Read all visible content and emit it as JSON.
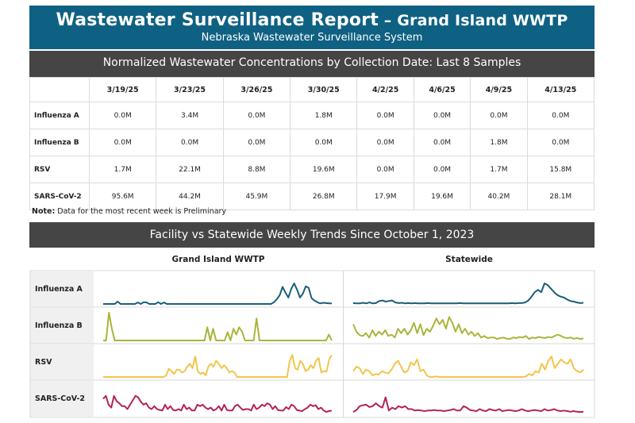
{
  "header": {
    "title": "Wastewater Surveillance Report",
    "title_suffix": " – Grand Island WWTP",
    "subtitle": "Nebraska Wastewater Surveillance System"
  },
  "section1": {
    "title": "Normalized Wastewater Concentrations by Collection Date: Last 8 Samples"
  },
  "table": {
    "dates": [
      "3/19/25",
      "3/23/25",
      "3/26/25",
      "3/30/25",
      "4/2/25",
      "4/6/25",
      "4/9/25",
      "4/13/25"
    ],
    "rows": [
      {
        "pathogen": "Influenza A",
        "values": [
          "0.0M",
          "3.4M",
          "0.0M",
          "1.8M",
          "0.0M",
          "0.0M",
          "0.0M",
          "0.0M"
        ]
      },
      {
        "pathogen": "Influenza B",
        "values": [
          "0.0M",
          "0.0M",
          "0.0M",
          "0.0M",
          "0.0M",
          "0.0M",
          "1.8M",
          "0.0M"
        ]
      },
      {
        "pathogen": "RSV",
        "values": [
          "1.7M",
          "22.1M",
          "8.8M",
          "19.6M",
          "0.0M",
          "0.0M",
          "1.7M",
          "15.8M"
        ]
      },
      {
        "pathogen": "SARS-CoV-2",
        "values": [
          "95.6M",
          "44.2M",
          "45.9M",
          "26.8M",
          "17.9M",
          "19.6M",
          "40.2M",
          "28.1M"
        ]
      }
    ]
  },
  "note": {
    "label": "Note:",
    "text": " Data for the most recent week is Preliminary"
  },
  "section2": {
    "title": "Facility vs Statewide Weekly Trends Since October 1, 2023"
  },
  "chart_data": {
    "type": "line",
    "panels": [
      "Grand Island WWTP",
      "Statewide"
    ],
    "rows": [
      "Influenza A",
      "Influenza B",
      "RSV",
      "SARS-CoV-2"
    ],
    "colors": {
      "Influenza A": "#1a5e78",
      "Influenza B": "#aab53a",
      "RSV": "#f2c54b",
      "SARS-CoV-2": "#b5215a"
    },
    "series": [
      {
        "panel": "Grand Island WWTP",
        "row": "Influenza A",
        "values": [
          0,
          0,
          0,
          0,
          0,
          8,
          0,
          0,
          0,
          0,
          0,
          0,
          5,
          0,
          6,
          5,
          0,
          0,
          0,
          6,
          0,
          5,
          0,
          0,
          0,
          0,
          0,
          0,
          0,
          0,
          0,
          0,
          0,
          0,
          0,
          0,
          0,
          0,
          0,
          0,
          0,
          0,
          0,
          0,
          0,
          0,
          0,
          0,
          0,
          0,
          0,
          0,
          0,
          0,
          0,
          0,
          0,
          0,
          0,
          6,
          16,
          30,
          58,
          38,
          22,
          52,
          70,
          48,
          22,
          35,
          60,
          55,
          20,
          12,
          6,
          2,
          4,
          3,
          2,
          2
        ]
      },
      {
        "panel": "Grand Island WWTP",
        "row": "Influenza B",
        "values": [
          0,
          0,
          95,
          40,
          0,
          0,
          0,
          0,
          0,
          0,
          0,
          0,
          0,
          0,
          0,
          0,
          0,
          0,
          0,
          0,
          0,
          0,
          0,
          0,
          0,
          0,
          0,
          0,
          0,
          0,
          0,
          0,
          0,
          0,
          0,
          0,
          45,
          0,
          40,
          0,
          0,
          0,
          0,
          28,
          0,
          40,
          20,
          45,
          30,
          0,
          0,
          0,
          0,
          75,
          0,
          0,
          0,
          0,
          0,
          0,
          0,
          0,
          0,
          0,
          0,
          0,
          0,
          0,
          0,
          0,
          0,
          0,
          0,
          0,
          0,
          0,
          0,
          0,
          20,
          0
        ]
      },
      {
        "panel": "Grand Island WWTP",
        "row": "RSV",
        "values": [
          0,
          0,
          0,
          0,
          0,
          0,
          0,
          0,
          0,
          0,
          0,
          0,
          0,
          0,
          0,
          0,
          0,
          0,
          0,
          0,
          0,
          0,
          0,
          0,
          5,
          28,
          20,
          10,
          25,
          25,
          15,
          20,
          35,
          45,
          30,
          70,
          20,
          10,
          15,
          5,
          35,
          45,
          35,
          55,
          45,
          30,
          40,
          30,
          15,
          20,
          15,
          0,
          0,
          0,
          0,
          0,
          0,
          0,
          0,
          0,
          0,
          0,
          0,
          0,
          0,
          0,
          0,
          0,
          0,
          0,
          0,
          55,
          75,
          30,
          25,
          55,
          45,
          20,
          25,
          40,
          30,
          55,
          65,
          15,
          20,
          18,
          60,
          75
        ]
      },
      {
        "panel": "Grand Island WWTP",
        "row": "SARS-CoV-2",
        "values": [
          50,
          60,
          30,
          20,
          60,
          42,
          35,
          25,
          25,
          15,
          30,
          45,
          60,
          55,
          40,
          30,
          35,
          20,
          15,
          25,
          15,
          12,
          10,
          30,
          15,
          25,
          12,
          10,
          15,
          10,
          30,
          15,
          20,
          10,
          10,
          30,
          25,
          30,
          20,
          15,
          20,
          10,
          15,
          25,
          10,
          30,
          12,
          10,
          10,
          25,
          30,
          20,
          12,
          15,
          15,
          10,
          30,
          15,
          20,
          30,
          25,
          35,
          30,
          15,
          25,
          12,
          10,
          10,
          22,
          15,
          30,
          25,
          12,
          10,
          8,
          15,
          20,
          30,
          25,
          28,
          15,
          20,
          10,
          5,
          8,
          10
        ]
      },
      {
        "panel": "Statewide",
        "row": "Influenza A",
        "values": [
          3,
          2,
          2,
          4,
          2,
          5,
          2,
          3,
          10,
          12,
          8,
          10,
          12,
          5,
          3,
          4,
          2,
          3,
          2,
          3,
          2,
          2,
          2,
          3,
          2,
          2,
          2,
          2,
          2,
          2,
          2,
          2,
          2,
          3,
          2,
          2,
          2,
          2,
          2,
          2,
          2,
          2,
          2,
          2,
          2,
          2,
          2,
          2,
          2,
          3,
          2,
          3,
          3,
          5,
          12,
          25,
          40,
          48,
          40,
          70,
          64,
          52,
          40,
          30,
          25,
          22,
          15,
          10,
          8,
          5,
          3,
          4
        ]
      },
      {
        "panel": "Statewide",
        "row": "Influenza B",
        "values": [
          55,
          30,
          18,
          15,
          25,
          10,
          35,
          15,
          30,
          20,
          35,
          15,
          20,
          10,
          40,
          25,
          40,
          20,
          35,
          60,
          25,
          55,
          18,
          40,
          30,
          50,
          75,
          55,
          70,
          40,
          80,
          60,
          30,
          55,
          25,
          40,
          20,
          30,
          15,
          25,
          10,
          15,
          8,
          10,
          10,
          5,
          8,
          10,
          6,
          5,
          10,
          8,
          12,
          10,
          15,
          5,
          10,
          8,
          12,
          10,
          8,
          12,
          10,
          15,
          20,
          15,
          10,
          8,
          10,
          6,
          8,
          5,
          7
        ]
      },
      {
        "panel": "Statewide",
        "row": "RSV",
        "values": [
          20,
          35,
          30,
          10,
          25,
          20,
          5,
          10,
          8,
          20,
          15,
          12,
          25,
          45,
          55,
          35,
          15,
          20,
          50,
          40,
          60,
          20,
          25,
          5,
          0,
          0,
          2,
          0,
          0,
          0,
          0,
          0,
          0,
          0,
          0,
          0,
          0,
          0,
          0,
          0,
          0,
          0,
          0,
          0,
          0,
          0,
          0,
          0,
          0,
          0,
          0,
          0,
          0,
          0,
          2,
          10,
          5,
          20,
          15,
          45,
          25,
          55,
          70,
          30,
          45,
          60,
          50,
          45,
          60,
          30,
          20,
          15,
          25
        ]
      },
      {
        "panel": "Statewide",
        "row": "SARS-CoV-2",
        "values": [
          5,
          12,
          25,
          28,
          30,
          22,
          25,
          35,
          25,
          20,
          55,
          10,
          20,
          15,
          25,
          20,
          25,
          15,
          15,
          10,
          12,
          10,
          8,
          10,
          10,
          12,
          10,
          10,
          8,
          10,
          12,
          15,
          10,
          10,
          25,
          20,
          12,
          10,
          8,
          15,
          10,
          8,
          15,
          12,
          10,
          15,
          8,
          10,
          12,
          10,
          8,
          10,
          15,
          10,
          8,
          10,
          12,
          10,
          8,
          15,
          10,
          12,
          15,
          10,
          8,
          10,
          8,
          6,
          8,
          6,
          5,
          6
        ]
      }
    ]
  }
}
